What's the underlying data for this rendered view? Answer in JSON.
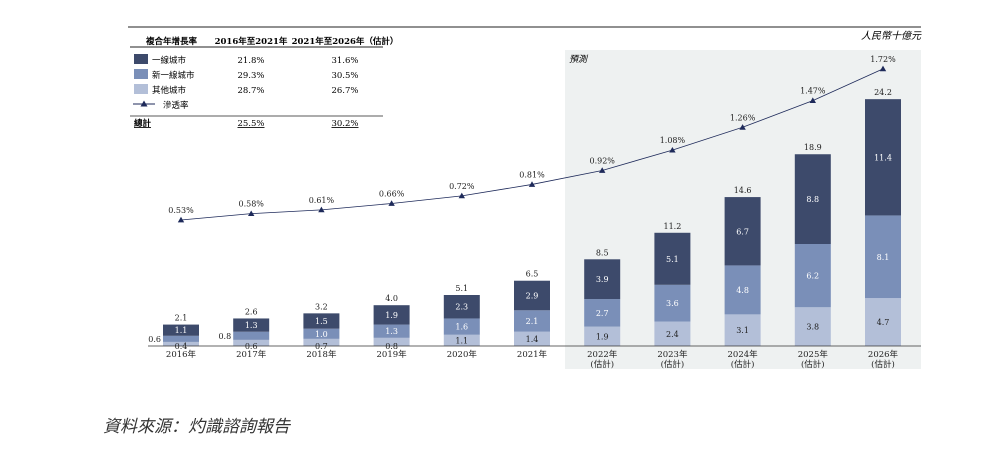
{
  "chart_data": {
    "type": "bar",
    "stacked": true,
    "unit": "人民幣十億元",
    "forecast_label": "預測",
    "categories": [
      "2016年",
      "2017年",
      "2018年",
      "2019年",
      "2020年",
      "2021年",
      "2022年",
      "2023年",
      "2024年",
      "2025年",
      "2026年"
    ],
    "category_sub": [
      "",
      "",
      "",
      "",
      "",
      "",
      "(估計)",
      "(估計)",
      "(估計)",
      "(估計)",
      "(估計)"
    ],
    "forecast_start_index": 6,
    "series": [
      {
        "name": "其他城市",
        "color": "#b3bfd8",
        "values": [
          0.4,
          0.6,
          0.7,
          0.8,
          1.1,
          1.4,
          1.9,
          2.4,
          3.1,
          3.8,
          4.7
        ],
        "labels": [
          "0.4",
          "0.6",
          "0.7",
          "0.8",
          "1.1",
          "1.4",
          "1.9",
          "2.4",
          "3.1",
          "3.8",
          "4.7"
        ]
      },
      {
        "name": "新一線城市",
        "color": "#7a8fb8",
        "values": [
          0.6,
          0.8,
          1.0,
          1.3,
          1.6,
          2.1,
          2.7,
          3.6,
          4.8,
          6.2,
          8.1
        ],
        "labels": [
          "0.6",
          "0.8",
          "1.0",
          "1.3",
          "1.6",
          "2.1",
          "2.7",
          "3.6",
          "4.8",
          "6.2",
          "8.1"
        ]
      },
      {
        "name": "一線城市",
        "color": "#3d4a6b",
        "values": [
          1.1,
          1.3,
          1.5,
          1.9,
          2.3,
          2.9,
          3.9,
          5.1,
          6.7,
          8.8,
          11.4
        ],
        "labels": [
          "1.1",
          "1.3",
          "1.5",
          "1.9",
          "2.3",
          "2.9",
          "3.9",
          "5.1",
          "6.7",
          "8.8",
          "11.4"
        ]
      }
    ],
    "totals": [
      "2.1",
      "2.6",
      "3.2",
      "4.0",
      "5.1",
      "6.5",
      "8.5",
      "11.2",
      "14.6",
      "18.9",
      "24.2"
    ],
    "penetration": {
      "name": "滲透率",
      "values": [
        0.53,
        0.58,
        0.61,
        0.66,
        0.72,
        0.81,
        0.92,
        1.08,
        1.26,
        1.47,
        1.72
      ],
      "labels": [
        "0.53%",
        "0.58%",
        "0.61%",
        "0.66%",
        "0.72%",
        "0.81%",
        "0.92%",
        "1.08%",
        "1.26%",
        "1.47%",
        "1.72%"
      ]
    },
    "cagr_table": {
      "header": [
        "複合年增長率",
        "2016年至2021年",
        "2021年至2026年（估計）"
      ],
      "rows": [
        {
          "label": "一線城市",
          "v1": "21.8%",
          "v2": "31.6%"
        },
        {
          "label": "新一線城市",
          "v1": "29.3%",
          "v2": "30.5%"
        },
        {
          "label": "其他城市",
          "v1": "28.7%",
          "v2": "26.7%"
        },
        {
          "label": "滲透率",
          "v1": "",
          "v2": ""
        }
      ],
      "total": {
        "label": "總計",
        "v1": "25.5%",
        "v2": "30.2%"
      }
    }
  },
  "source": "資料來源：灼識諮詢報告"
}
